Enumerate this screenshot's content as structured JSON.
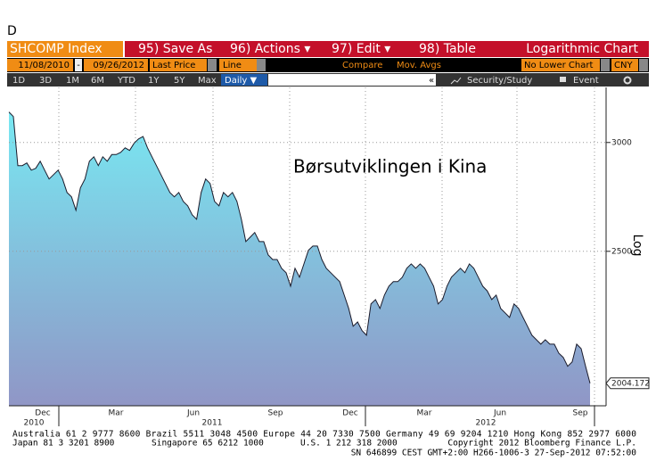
{
  "header": {
    "command": "D"
  },
  "toolbar": {
    "ticker": "SHCOMP Index",
    "buttons": [
      "95) Save As",
      "96) Actions ▾",
      "97) Edit ▾",
      "98) Table"
    ],
    "chart_kind": "Logarithmic Chart"
  },
  "settings": {
    "start_date": "11/08/2010",
    "separator": "-",
    "end_date": "09/26/2012",
    "field": "Last Price",
    "style": "Line",
    "compare": "Compare",
    "studies": "Mov. Avgs",
    "lower_chart": "No Lower Chart",
    "currency": "CNY"
  },
  "periods": {
    "items": [
      "1D",
      "3D",
      "1M",
      "6M",
      "YTD",
      "1Y",
      "5Y",
      "Max"
    ],
    "frequency": "Daily ▼",
    "collapse": "«",
    "security_study": "Security/Study",
    "event": "Event"
  },
  "chart_data": {
    "type": "line",
    "annotation": "Børsutviklingen i Kina",
    "y_axis_label": "Log",
    "log_scale": true,
    "x_range": [
      "11/08/2010",
      "09/26/2012"
    ],
    "x_tick_labels": [
      "Dec",
      "Mar",
      "Jun",
      "Sep",
      "Dec",
      "Mar",
      "Jun",
      "Sep"
    ],
    "x_year_labels": [
      "2010",
      "2011",
      "2012"
    ],
    "ylim": [
      1930,
      3290
    ],
    "yticks": [
      2500,
      3000
    ],
    "grid": true,
    "color": "#1a1a2a",
    "values": [
      3157,
      3133,
      2886,
      2886,
      2899,
      2864,
      2873,
      2907,
      2864,
      2822,
      2843,
      2864,
      2822,
      2759,
      2739,
      2678,
      2780,
      2822,
      2907,
      2929,
      2886,
      2929,
      2907,
      2940,
      2940,
      2951,
      2973,
      2960,
      2996,
      3018,
      3030,
      2973,
      2929,
      2886,
      2843,
      2801,
      2759,
      2739,
      2759,
      2718,
      2698,
      2658,
      2638,
      2759,
      2822,
      2801,
      2718,
      2698,
      2759,
      2739,
      2759,
      2718,
      2638,
      2541,
      2560,
      2580,
      2541,
      2541,
      2485,
      2466,
      2466,
      2430,
      2412,
      2358,
      2430,
      2394,
      2448,
      2504,
      2522,
      2522,
      2466,
      2430,
      2412,
      2394,
      2376,
      2323,
      2272,
      2205,
      2221,
      2189,
      2172,
      2289,
      2306,
      2272,
      2323,
      2358,
      2376,
      2376,
      2394,
      2430,
      2448,
      2430,
      2448,
      2430,
      2394,
      2358,
      2289,
      2306,
      2358,
      2394,
      2412,
      2430,
      2412,
      2448,
      2430,
      2394,
      2358,
      2340,
      2306,
      2323,
      2272,
      2255,
      2238,
      2289,
      2272,
      2238,
      2205,
      2172,
      2156,
      2140,
      2156,
      2140,
      2140,
      2108,
      2093,
      2062,
      2077,
      2140,
      2124,
      2062,
      2004.172
    ]
  },
  "footer": {
    "line1": "Australia 61 2 9777 8600 Brazil 5511 3048 4500 Europe 44 20 7330 7500 Germany 49 69 9204 1210 Hong Kong 852 2977 6000",
    "line2": [
      "Japan 81 3 3201 8900",
      "Singapore 65 6212 1000",
      "U.S. 1 212 318 2000",
      "Copyright 2012 Bloomberg Finance L.P."
    ],
    "line3": "SN 646899 CEST GMT+2:00 H266-1006-3 27-Sep-2012 07:52:00"
  }
}
